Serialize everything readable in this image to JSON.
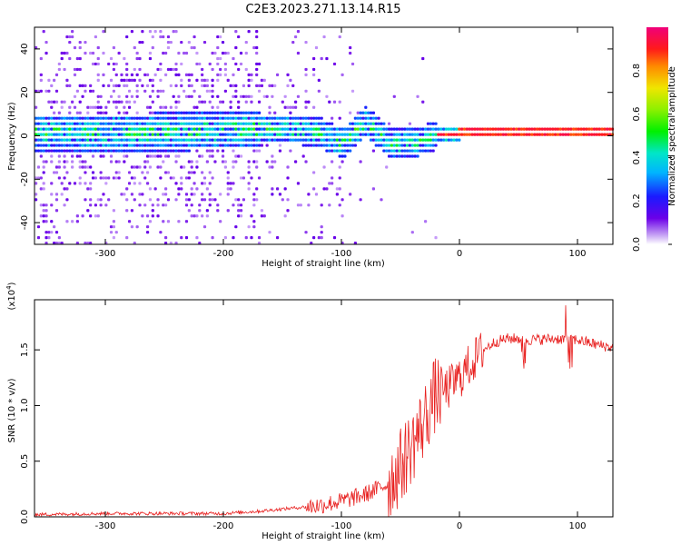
{
  "title": "C2E3.2023.271.13.14.R15",
  "chart_data": [
    {
      "type": "heatmap",
      "xlabel": "Height of straight line (km)",
      "ylabel": "Frequency (Hz)",
      "xlim": [
        -360,
        130
      ],
      "ylim": [
        -50,
        50
      ],
      "xticks": [
        -300,
        -200,
        -100,
        0,
        100
      ],
      "yticks": [
        -40,
        -20,
        0,
        20,
        40
      ],
      "colorbar": {
        "label": "Normalized spectral amplitude",
        "range": [
          0,
          1
        ],
        "ticks": [
          "0.0",
          "0.2",
          "0.4",
          "0.6",
          "0.8"
        ],
        "colormap": "rainbow (violet → blue → cyan → green → yellow → red → magenta)"
      },
      "description_points": {
        "ridge_center_frequency_hz": [
          {
            "x": -340,
            "y": 1
          },
          {
            "x": -300,
            "y": 1
          },
          {
            "x": -260,
            "y": 1
          },
          {
            "x": -200,
            "y": 2
          },
          {
            "x": -150,
            "y": 3
          },
          {
            "x": -120,
            "y": 1
          },
          {
            "x": -100,
            "y": -4
          },
          {
            "x": -80,
            "y": 6
          },
          {
            "x": -60,
            "y": -4
          },
          {
            "x": -40,
            "y": -4
          },
          {
            "x": -20,
            "y": 0
          },
          {
            "x": 0,
            "y": 1
          },
          {
            "x": 50,
            "y": 1
          },
          {
            "x": 100,
            "y": 1
          },
          {
            "x": 130,
            "y": 1
          }
        ]
      }
    },
    {
      "type": "line",
      "xlabel": "Height of straight line (km)",
      "ylabel": "SNR (10 * v/v)",
      "multiplier": "(x10",
      "multiplier_exp": "4",
      "xlim": [
        -360,
        130
      ],
      "ylim": [
        0,
        1.95
      ],
      "xticks": [
        -300,
        -200,
        -100,
        0,
        100
      ],
      "yticks": [
        "0.0",
        "0.5",
        "1.0",
        "1.5"
      ],
      "series": [
        {
          "color": "#e8201f",
          "x": [
            -360,
            -300,
            -250,
            -200,
            -170,
            -150,
            -120,
            -100,
            -80,
            -60,
            -50,
            -40,
            -30,
            -25,
            -20,
            -10,
            0,
            10,
            20,
            30,
            40,
            50,
            60,
            80,
            100,
            115,
            130
          ],
          "y": [
            0.02,
            0.03,
            0.03,
            0.03,
            0.05,
            0.07,
            0.1,
            0.14,
            0.2,
            0.3,
            0.45,
            0.65,
            0.85,
            1.0,
            1.1,
            1.15,
            1.25,
            1.38,
            1.5,
            1.57,
            1.6,
            1.6,
            1.59,
            1.6,
            1.59,
            1.55,
            1.52
          ]
        }
      ]
    }
  ]
}
